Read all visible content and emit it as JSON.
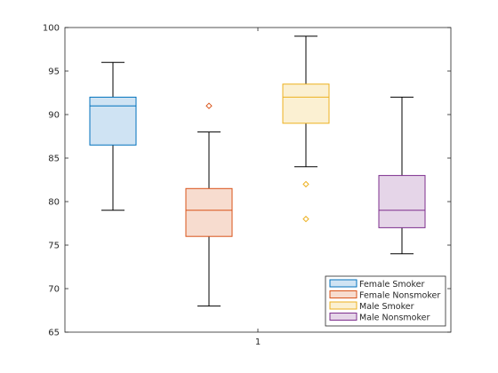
{
  "chart_data": {
    "type": "boxplot",
    "title": "",
    "xlabel": "",
    "ylabel": "",
    "categories": [
      "1"
    ],
    "ylim": [
      65,
      100
    ],
    "yticks": [
      65,
      70,
      75,
      80,
      85,
      90,
      95,
      100
    ],
    "grid": false,
    "legend_position": "bottom-right",
    "series": [
      {
        "name": "Female Smoker",
        "color": "#0072BD",
        "fill": "#cfe3f3",
        "min": 79,
        "q1": 86.5,
        "median": 91,
        "q3": 92,
        "max": 96,
        "outliers": []
      },
      {
        "name": "Female Nonsmoker",
        "color": "#D95319",
        "fill": "#f7dccf",
        "min": 68,
        "q1": 76,
        "median": 79,
        "q3": 81.5,
        "max": 88,
        "outliers": [
          91
        ]
      },
      {
        "name": "Male Smoker",
        "color": "#EDB120",
        "fill": "#fbf0d2",
        "min": 84,
        "q1": 89,
        "median": 92,
        "q3": 93.5,
        "max": 99,
        "outliers": [
          82,
          78
        ]
      },
      {
        "name": "Male Nonsmoker",
        "color": "#7E2F8E",
        "fill": "#e5d5e8",
        "min": 74,
        "q1": 77,
        "median": 79,
        "q3": 83,
        "max": 92,
        "outliers": []
      }
    ]
  }
}
